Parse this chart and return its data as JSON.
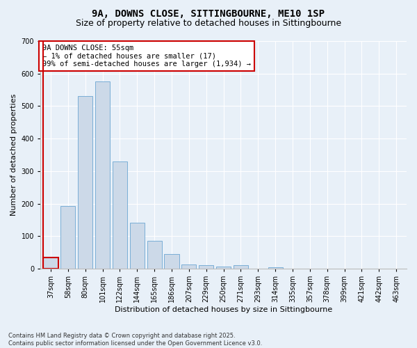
{
  "title": "9A, DOWNS CLOSE, SITTINGBOURNE, ME10 1SP",
  "subtitle": "Size of property relative to detached houses in Sittingbourne",
  "xlabel": "Distribution of detached houses by size in Sittingbourne",
  "ylabel": "Number of detached properties",
  "categories": [
    "37sqm",
    "58sqm",
    "80sqm",
    "101sqm",
    "122sqm",
    "144sqm",
    "165sqm",
    "186sqm",
    "207sqm",
    "229sqm",
    "250sqm",
    "271sqm",
    "293sqm",
    "314sqm",
    "335sqm",
    "357sqm",
    "378sqm",
    "399sqm",
    "421sqm",
    "442sqm",
    "463sqm"
  ],
  "values": [
    35,
    193,
    530,
    575,
    330,
    142,
    85,
    46,
    13,
    11,
    6,
    11,
    0,
    5,
    0,
    0,
    0,
    0,
    0,
    0,
    0
  ],
  "bar_color": "#ccd9e8",
  "bar_edge_color": "#7aaed6",
  "highlight_bar_index": 0,
  "highlight_edge_color": "#cc0000",
  "ylim": [
    0,
    700
  ],
  "yticks": [
    0,
    100,
    200,
    300,
    400,
    500,
    600,
    700
  ],
  "annotation_text": "9A DOWNS CLOSE: 55sqm\n← 1% of detached houses are smaller (17)\n99% of semi-detached houses are larger (1,934) →",
  "annotation_box_color": "#ffffff",
  "annotation_box_edge": "#cc0000",
  "bg_color": "#e8f0f8",
  "footer_line1": "Contains HM Land Registry data © Crown copyright and database right 2025.",
  "footer_line2": "Contains public sector information licensed under the Open Government Licence v3.0.",
  "title_fontsize": 10,
  "subtitle_fontsize": 9,
  "axis_label_fontsize": 8,
  "tick_fontsize": 7,
  "annotation_fontsize": 7.5,
  "footer_fontsize": 6
}
